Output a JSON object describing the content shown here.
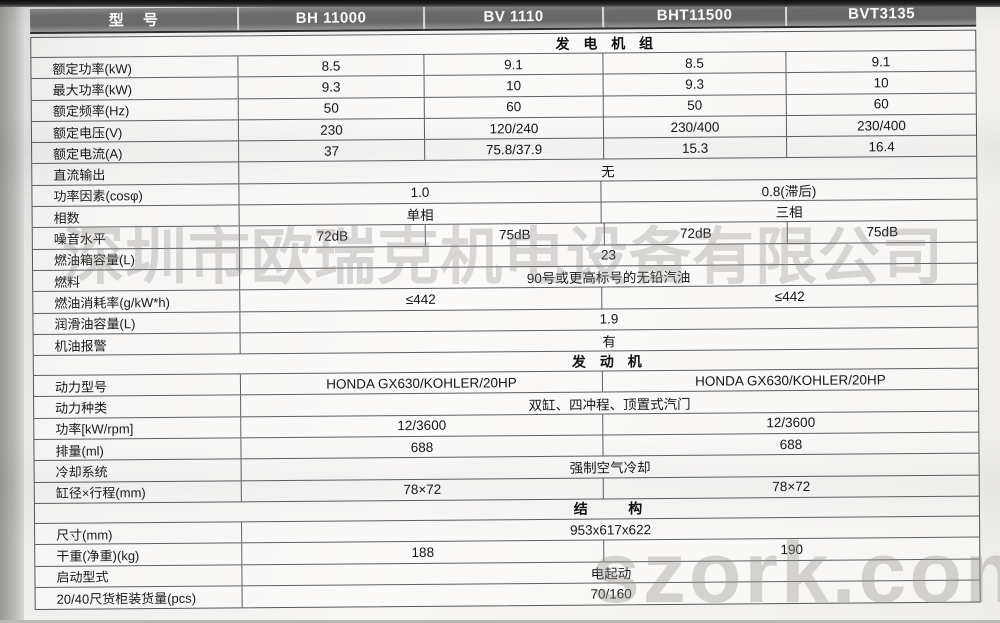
{
  "table": {
    "header": {
      "model_label": "型    号",
      "models": [
        "BH 11000",
        "BV 1110",
        "BHT11500",
        "BVT3135"
      ]
    },
    "rows": [
      {
        "type": "section",
        "label": "发 电 机 组"
      },
      {
        "type": "r4",
        "label": "额定功率(kW)",
        "cells": [
          "8.5",
          "9.1",
          "8.5",
          "9.1"
        ]
      },
      {
        "type": "r4",
        "label": "最大功率(kW)",
        "cells": [
          "9.3",
          "10",
          "9.3",
          "10"
        ]
      },
      {
        "type": "r4",
        "label": "额定频率(Hz)",
        "cells": [
          "50",
          "60",
          "50",
          "60"
        ]
      },
      {
        "type": "r4",
        "label": "额定电压(V)",
        "cells": [
          "230",
          "120/240",
          "230/400",
          "230/400"
        ]
      },
      {
        "type": "r4",
        "label": "额定电流(A)",
        "cells": [
          "37",
          "75.8/37.9",
          "15.3",
          "16.4"
        ]
      },
      {
        "type": "r1",
        "label": "直流输出",
        "value": "无"
      },
      {
        "type": "r2",
        "label": "功率因素(cosφ)",
        "left": "1.0",
        "right": "0.8(滞后)"
      },
      {
        "type": "r2",
        "label": "相数",
        "left": "单相",
        "right": "三相"
      },
      {
        "type": "r4",
        "label": "噪音水平",
        "cells": [
          "72dB",
          "75dB",
          "72dB",
          "75dB"
        ]
      },
      {
        "type": "r1",
        "label": "燃油箱容量(L)",
        "value": "23"
      },
      {
        "type": "r1",
        "label": "燃料",
        "value": "90号或更高标号的无铅汽油"
      },
      {
        "type": "r2",
        "label": "燃油消耗率(g/kW*h)",
        "left": "≤442",
        "right": "≤442"
      },
      {
        "type": "r1",
        "label": "润滑油容量(L)",
        "value": "1.9"
      },
      {
        "type": "r1",
        "label": "机油报警",
        "value": "有"
      },
      {
        "type": "section",
        "label": "发 动 机"
      },
      {
        "type": "r2",
        "label": "动力型号",
        "left": "HONDA GX630/KOHLER/20HP",
        "right": "HONDA GX630/KOHLER/20HP"
      },
      {
        "type": "r1",
        "label": "动力种类",
        "value": "双缸、四冲程、顶置式汽门"
      },
      {
        "type": "r2",
        "label": "功率[kW/rpm]",
        "left": "12/3600",
        "right": "12/3600"
      },
      {
        "type": "r2",
        "label": "排量(ml)",
        "left": "688",
        "right": "688"
      },
      {
        "type": "r1",
        "label": "冷却系统",
        "value": "强制空气冷却"
      },
      {
        "type": "r2",
        "label": "缸径×行程(mm)",
        "left": "78×72",
        "right": "78×72"
      },
      {
        "type": "section",
        "label": "结    构"
      },
      {
        "type": "r1",
        "label": "尺寸(mm)",
        "value": "953x617x622"
      },
      {
        "type": "r2",
        "label": "干重(净重)(kg)",
        "left": "188",
        "right": "190"
      },
      {
        "type": "r1",
        "label": "启动型式",
        "value": "电起动"
      },
      {
        "type": "r1",
        "label": "20/40尺货柜装货量(pcs)",
        "value": "70/160"
      }
    ],
    "watermarks": {
      "company": "深圳市欧瑞克机电设备有限公司",
      "site": "szork.com"
    }
  }
}
